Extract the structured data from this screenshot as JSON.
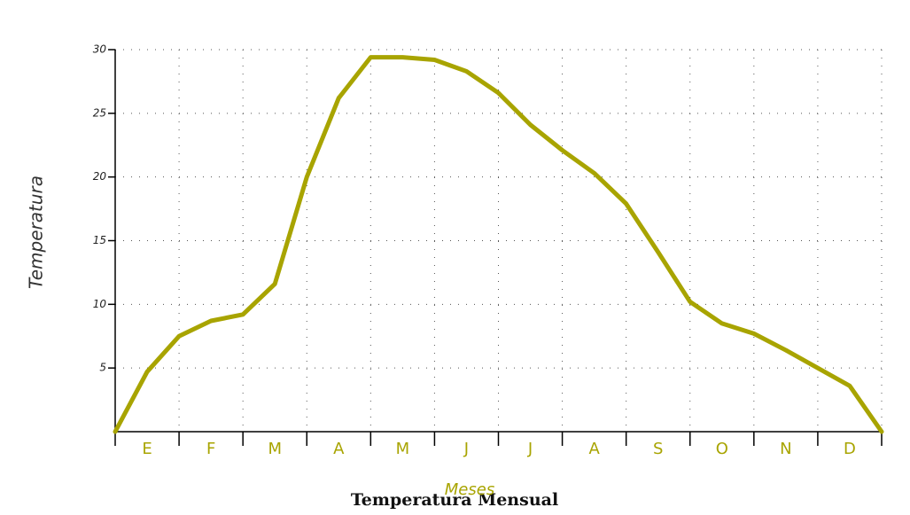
{
  "chart_data": {
    "type": "line",
    "title": "Temperatura Mensual",
    "xlabel": "Meses",
    "ylabel": "Temperatura",
    "x": [
      0,
      0.5,
      1,
      1.5,
      2,
      2.5,
      3,
      3.5,
      4,
      4.5,
      5,
      5.5,
      6,
      6.5,
      7,
      7.5,
      8,
      8.5,
      9,
      9.5,
      10,
      10.5,
      11,
      11.5,
      12
    ],
    "series": [
      {
        "name": "Temperatura",
        "color": "#a8a400",
        "values": [
          0,
          4.7,
          7.5,
          8.7,
          9.2,
          11.6,
          20,
          26.2,
          29.4,
          29.4,
          29.2,
          28.3,
          26.6,
          24.1,
          22.1,
          20.3,
          17.9,
          14.1,
          10.2,
          8.5,
          7.7,
          6.4,
          5.0,
          3.6,
          0
        ]
      }
    ],
    "xlim": [
      0,
      12
    ],
    "xticks": [
      {
        "value": 0.5,
        "label": "E"
      },
      {
        "value": 1.5,
        "label": "F"
      },
      {
        "value": 2.5,
        "label": "M"
      },
      {
        "value": 3.5,
        "label": "A"
      },
      {
        "value": 4.5,
        "label": "M"
      },
      {
        "value": 5.5,
        "label": "J"
      },
      {
        "value": 6.5,
        "label": "J"
      },
      {
        "value": 7.5,
        "label": "A"
      },
      {
        "value": 8.5,
        "label": "S"
      },
      {
        "value": 9.5,
        "label": "O"
      },
      {
        "value": 10.5,
        "label": "N"
      },
      {
        "value": 11.5,
        "label": "D"
      }
    ],
    "xminor": [
      0,
      1,
      2,
      3,
      4,
      5,
      6,
      7,
      8,
      9,
      10,
      11,
      12
    ],
    "ylim": [
      0,
      30
    ],
    "yticks": [
      5,
      10,
      15,
      20,
      25,
      30
    ],
    "grid": true
  }
}
